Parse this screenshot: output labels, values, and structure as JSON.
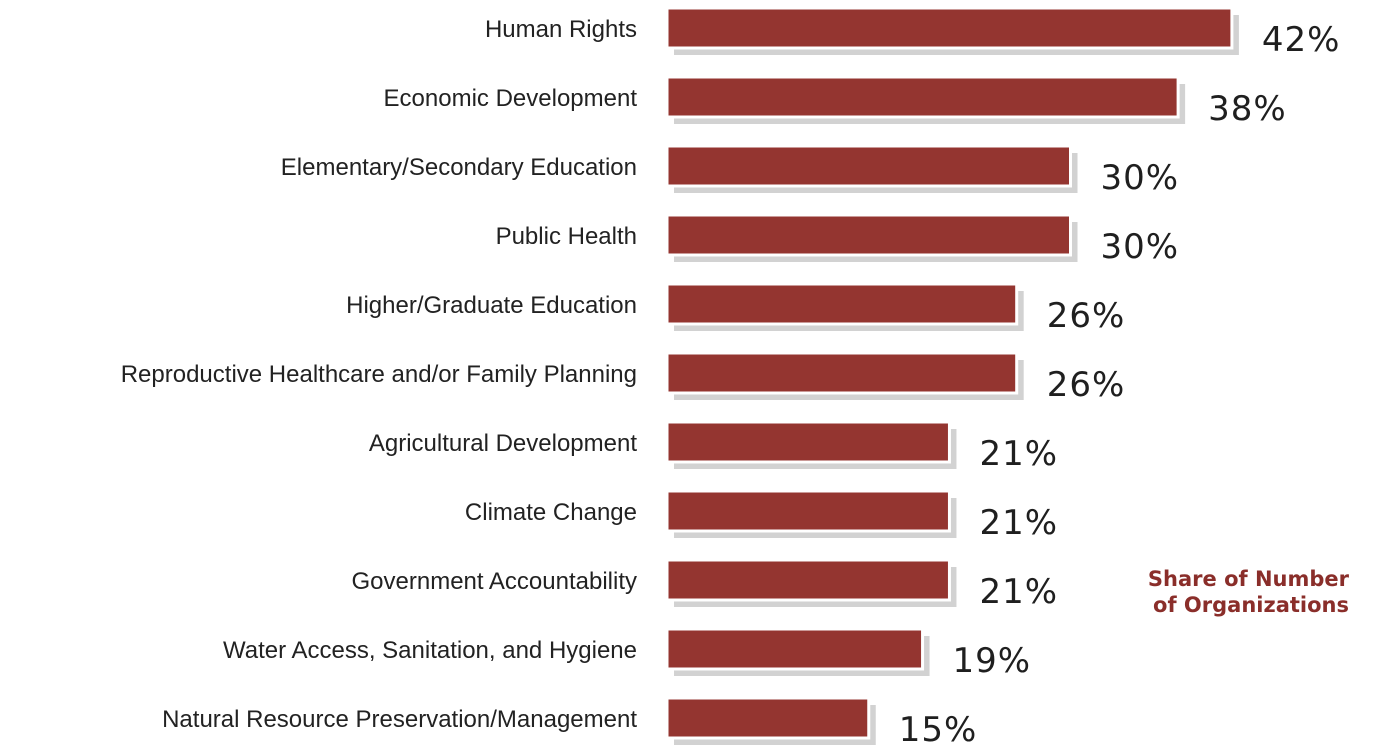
{
  "note": {
    "line1": "Share of Number",
    "line2": "of Organizations"
  },
  "colors": {
    "bar": "#943530",
    "note": "#8a2e2a"
  },
  "chart_data": {
    "type": "bar",
    "orientation": "horizontal",
    "categories": [
      "Human Rights",
      "Economic Development",
      "Elementary/Secondary Education",
      "Public Health",
      "Higher/Graduate Education",
      "Reproductive Healthcare and/or Family Planning",
      "Agricultural Development",
      "Climate Change",
      "Government Accountability",
      "Water Access, Sanitation, and Hygiene",
      "Natural Resource Preservation/Management"
    ],
    "values": [
      42,
      38,
      30,
      30,
      26,
      26,
      21,
      21,
      21,
      19,
      15
    ],
    "value_labels": [
      "42%",
      "38%",
      "30%",
      "30%",
      "26%",
      "26%",
      "21%",
      "21%",
      "21%",
      "19%",
      "15%"
    ],
    "unit": "%",
    "title": "",
    "xlabel": "",
    "ylabel": "",
    "grid": false,
    "legend": "none"
  }
}
